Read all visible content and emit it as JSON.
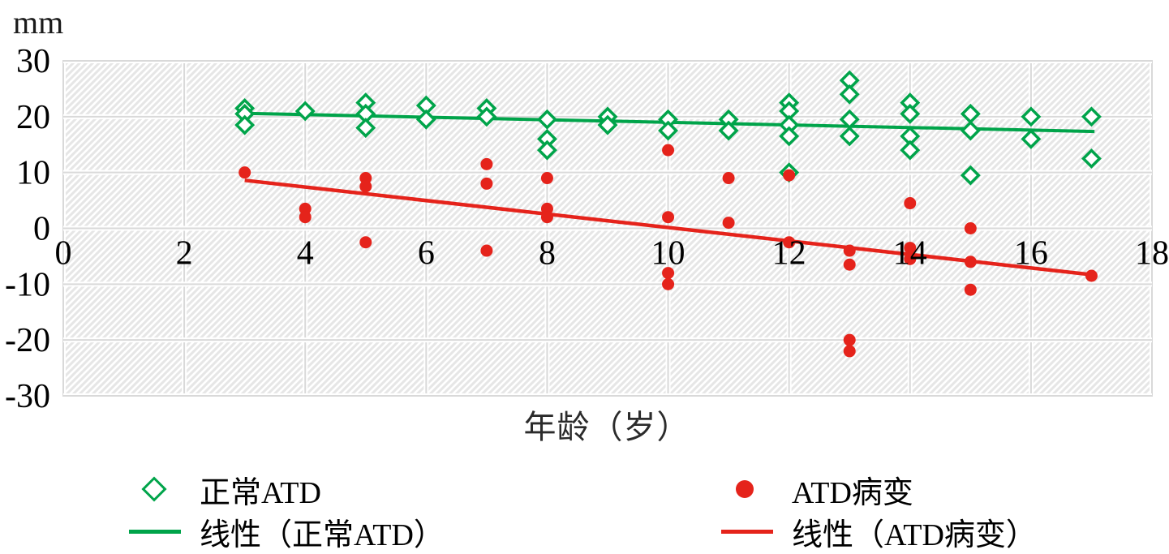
{
  "chart_data": {
    "type": "scatter",
    "y_unit_label": "mm",
    "xlabel": "年龄（岁）",
    "xlim": [
      0,
      18
    ],
    "ylim": [
      -30,
      30
    ],
    "x_ticks": [
      0,
      2,
      4,
      6,
      8,
      10,
      12,
      14,
      16,
      18
    ],
    "y_ticks": [
      30,
      20,
      10,
      0,
      -10,
      -20,
      -30
    ],
    "grid": true,
    "plot_background": "diagonal-hatch",
    "colors": {
      "normal": "#00A44A",
      "lesion": "#E5231B",
      "gridline": "#D9D9D9",
      "hatch": "#E6E6E6"
    },
    "series": [
      {
        "name": "正常ATD",
        "marker": "open-diamond",
        "color": "#00A44A",
        "points": [
          [
            3,
            21.5
          ],
          [
            3,
            20.5
          ],
          [
            3,
            18.5
          ],
          [
            4,
            21
          ],
          [
            5,
            22.5
          ],
          [
            5,
            20.5
          ],
          [
            5,
            18
          ],
          [
            6,
            22
          ],
          [
            6,
            19.5
          ],
          [
            7,
            21.5
          ],
          [
            7,
            20
          ],
          [
            8,
            19.5
          ],
          [
            8,
            16
          ],
          [
            8,
            14
          ],
          [
            9,
            20
          ],
          [
            9,
            18.5
          ],
          [
            10,
            19.5
          ],
          [
            10,
            17.5
          ],
          [
            11,
            19.5
          ],
          [
            11,
            17.5
          ],
          [
            12,
            22.5
          ],
          [
            12,
            21
          ],
          [
            12,
            18.5
          ],
          [
            12,
            16.5
          ],
          [
            12,
            10
          ],
          [
            13,
            26.5
          ],
          [
            13,
            24
          ],
          [
            13,
            19.5
          ],
          [
            13,
            16.5
          ],
          [
            14,
            22.5
          ],
          [
            14,
            20.5
          ],
          [
            14,
            16.5
          ],
          [
            14,
            14
          ],
          [
            15,
            20.5
          ],
          [
            15,
            17.5
          ],
          [
            15,
            9.5
          ],
          [
            16,
            20
          ],
          [
            16,
            16
          ],
          [
            17,
            20
          ],
          [
            17,
            12.5
          ]
        ]
      },
      {
        "name": "ATD病变",
        "marker": "filled-circle",
        "color": "#E5231B",
        "points": [
          [
            3,
            10
          ],
          [
            4,
            3.5
          ],
          [
            4,
            2
          ],
          [
            5,
            9
          ],
          [
            5,
            7.5
          ],
          [
            5,
            -2.5
          ],
          [
            7,
            11.5
          ],
          [
            7,
            8
          ],
          [
            7,
            -4
          ],
          [
            8,
            9
          ],
          [
            8,
            3.5
          ],
          [
            8,
            2
          ],
          [
            10,
            14
          ],
          [
            10,
            2
          ],
          [
            10,
            -8
          ],
          [
            10,
            -10
          ],
          [
            11,
            9
          ],
          [
            11,
            1
          ],
          [
            12,
            9.5
          ],
          [
            12,
            -2.5
          ],
          [
            13,
            -4
          ],
          [
            13,
            -6.5
          ],
          [
            13,
            -20
          ],
          [
            13,
            -22
          ],
          [
            14,
            4.5
          ],
          [
            14,
            -3.5
          ],
          [
            14,
            -5.5
          ],
          [
            15,
            0
          ],
          [
            15,
            -6
          ],
          [
            15,
            -11
          ],
          [
            17,
            -8.5
          ]
        ]
      }
    ],
    "trend_lines": [
      {
        "name": "线性（正常ATD）",
        "color": "#00A44A",
        "x1": 3,
        "y1": 20.6,
        "x2": 17.05,
        "y2": 17.35
      },
      {
        "name": "线性（ATD病变）",
        "color": "#E5231B",
        "x1": 3,
        "y1": 8.6,
        "x2": 17,
        "y2": -8.3
      }
    ],
    "legend": [
      {
        "label": "正常ATD",
        "marker": "open-diamond",
        "color": "#00A44A"
      },
      {
        "label": "线性（正常ATD）",
        "marker": "line",
        "color": "#00A44A"
      },
      {
        "label": "ATD病变",
        "marker": "filled-circle",
        "color": "#E5231B"
      },
      {
        "label": "线性（ATD病变）",
        "marker": "line",
        "color": "#E5231B"
      }
    ]
  }
}
